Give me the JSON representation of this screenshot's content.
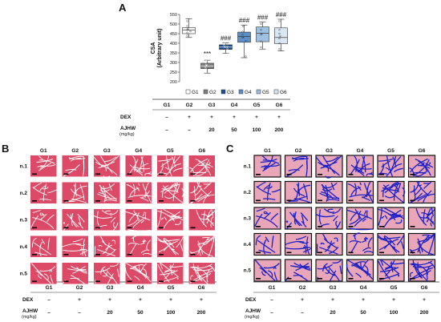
{
  "panels": {
    "a": "A",
    "b": "B",
    "c": "C"
  },
  "colors": {
    "G1": "#ffffff",
    "G2": "#7f7f7f",
    "G3": "#1f4e8c",
    "G4": "#5b8fc7",
    "G5": "#9dc0e3",
    "G6": "#d9e7f4",
    "he_bg": "#c9344d",
    "he_fiber": "#f4a0b4",
    "mt_bg": "#1d22c8",
    "mt_fiber": "#e8a5b5"
  },
  "table": {
    "groups": [
      "G1",
      "G2",
      "G3",
      "G4",
      "G5",
      "G6"
    ],
    "dex_label": "DEX",
    "dex": [
      "–",
      "+",
      "+",
      "+",
      "+",
      "+"
    ],
    "ajhw_label": "AJHW",
    "ajhw_unit": "(mg/kg)",
    "ajhw": [
      "–",
      "–",
      "20",
      "50",
      "100",
      "200"
    ]
  },
  "rows": [
    "n.1",
    "n.2",
    "n.3",
    "n.4",
    "n.5"
  ],
  "chart_data": {
    "type": "box",
    "ylabel": "CSA",
    "ylabel2": "(Arbitrary unit)",
    "ylim": [
      200,
      550
    ],
    "yticks": [
      200,
      250,
      300,
      350,
      400,
      450,
      500,
      550
    ],
    "legend": [
      "G1",
      "G2",
      "G3",
      "G4",
      "G5",
      "G6"
    ],
    "legend_position": "bottom",
    "series": [
      {
        "name": "G1",
        "min": 430,
        "q1": 450,
        "median": 468,
        "q3": 482,
        "max": 528,
        "mean": 470,
        "points": [
          440,
          455,
          462,
          470,
          478,
          490,
          515
        ]
      },
      {
        "name": "G2",
        "min": 245,
        "q1": 268,
        "median": 282,
        "q3": 296,
        "max": 312,
        "mean": 283,
        "sig": "***",
        "points": [
          250,
          270,
          280,
          288,
          300,
          308
        ]
      },
      {
        "name": "G3",
        "min": 348,
        "q1": 368,
        "median": 380,
        "q3": 392,
        "max": 402,
        "mean": 380,
        "sig": "###",
        "points": [
          352,
          372,
          382,
          390,
          398
        ]
      },
      {
        "name": "G4",
        "min": 325,
        "q1": 405,
        "median": 435,
        "q3": 458,
        "max": 495,
        "mean": 430,
        "sig": "###",
        "points": [
          332,
          412,
          430,
          445,
          460,
          488
        ]
      },
      {
        "name": "G5",
        "min": 370,
        "q1": 408,
        "median": 452,
        "q3": 485,
        "max": 510,
        "mean": 448,
        "sig": "###",
        "points": [
          380,
          410,
          445,
          470,
          500
        ]
      },
      {
        "name": "G6",
        "min": 360,
        "q1": 398,
        "median": 430,
        "q3": 480,
        "max": 525,
        "mean": 435,
        "sig": "###",
        "points": [
          370,
          400,
          425,
          450,
          470,
          515
        ]
      }
    ]
  }
}
